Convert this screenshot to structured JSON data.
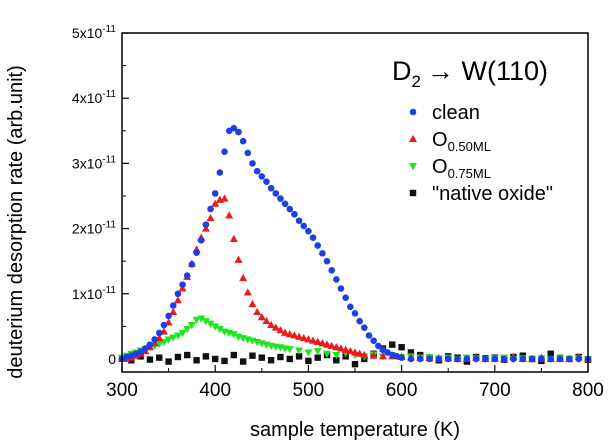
{
  "chart_data": {
    "type": "scatter",
    "title": "D",
    "title_sub": "2",
    "title_rest": "→ W(110)",
    "xlabel": "sample temperature (K)",
    "ylabel": "deuterium desorption rate (arb.unit)",
    "xlim": [
      300,
      800
    ],
    "ylim": [
      -2e-12,
      5e-11
    ],
    "x_ticks": [
      300,
      400,
      500,
      600,
      700,
      800
    ],
    "y_ticks": [
      {
        "value": 0,
        "label": "0",
        "exp": ""
      },
      {
        "value": 1e-11,
        "label": "1x10",
        "exp": "-11"
      },
      {
        "value": 2e-11,
        "label": "2x10",
        "exp": "-11"
      },
      {
        "value": 3e-11,
        "label": "3x10",
        "exp": "-11"
      },
      {
        "value": 4e-11,
        "label": "4x10",
        "exp": "-11"
      },
      {
        "value": 5e-11,
        "label": "5x10",
        "exp": "-11"
      }
    ],
    "grid": false,
    "legend_position": "top-right",
    "series": [
      {
        "name": "clean",
        "name_sub": "",
        "marker": "circle",
        "color": "#1f3fe6",
        "x": [
          300,
          305,
          310,
          315,
          320,
          325,
          330,
          335,
          340,
          345,
          350,
          355,
          360,
          365,
          370,
          375,
          380,
          385,
          390,
          395,
          400,
          405,
          410,
          415,
          420,
          425,
          430,
          435,
          440,
          445,
          450,
          455,
          460,
          465,
          470,
          475,
          480,
          485,
          490,
          495,
          500,
          505,
          510,
          515,
          520,
          525,
          530,
          535,
          540,
          545,
          550,
          555,
          560,
          565,
          570,
          575,
          580,
          585,
          590,
          595,
          600,
          610,
          620,
          630,
          640,
          650,
          660,
          670,
          680,
          690,
          700,
          710,
          720,
          730,
          740,
          750,
          760,
          770,
          780,
          790,
          800
        ],
        "y": [
          0,
          3e-13,
          5e-13,
          8e-13,
          1.1e-12,
          1.6e-12,
          2.2e-12,
          3e-12,
          4e-12,
          5.2e-12,
          6.6e-12,
          8.2e-12,
          1e-11,
          1.14e-11,
          1.28e-11,
          1.45e-11,
          1.63e-11,
          1.82e-11,
          2.06e-11,
          2.3e-11,
          2.54e-11,
          2.86e-11,
          3.18e-11,
          3.5e-11,
          3.54e-11,
          3.48e-11,
          3.34e-11,
          3.16e-11,
          3e-11,
          2.88e-11,
          2.8e-11,
          2.72e-11,
          2.62e-11,
          2.54e-11,
          2.46e-11,
          2.38e-11,
          2.3e-11,
          2.22e-11,
          2.12e-11,
          2.04e-11,
          1.96e-11,
          1.86e-11,
          1.74e-11,
          1.62e-11,
          1.5e-11,
          1.36e-11,
          1.22e-11,
          1.08e-11,
          9.4e-12,
          8e-12,
          7e-12,
          5.8e-12,
          4.8e-12,
          3.6e-12,
          2.8e-12,
          2e-12,
          1.4e-12,
          1e-12,
          6e-13,
          4e-13,
          2e-13,
          0,
          0,
          0,
          0,
          0,
          0,
          0,
          0,
          0,
          0,
          0,
          0,
          0,
          0,
          0,
          0,
          0,
          0,
          0,
          0
        ]
      },
      {
        "name": "O",
        "name_sub": "0.50ML",
        "marker": "triangle-up",
        "color": "#e81c1c",
        "x": [
          300,
          305,
          310,
          315,
          320,
          325,
          330,
          335,
          340,
          345,
          350,
          355,
          360,
          365,
          370,
          375,
          380,
          385,
          390,
          395,
          400,
          405,
          410,
          415,
          420,
          425,
          430,
          435,
          440,
          445,
          450,
          455,
          460,
          465,
          470,
          475,
          480,
          485,
          490,
          495,
          500,
          505,
          510,
          515,
          520,
          525,
          530,
          535,
          540,
          545,
          550,
          555,
          560,
          570,
          580,
          590,
          600,
          610,
          620,
          630,
          640,
          650,
          660,
          670,
          680,
          690,
          700,
          710,
          720,
          730,
          740,
          750,
          760,
          770,
          780,
          790,
          800
        ],
        "y": [
          0,
          0,
          2e-13,
          5e-13,
          8e-13,
          1.2e-12,
          1.8e-12,
          2.4e-12,
          3.2e-12,
          4.2e-12,
          5.6e-12,
          7.2e-12,
          9e-12,
          1.08e-11,
          1.26e-11,
          1.46e-11,
          1.68e-11,
          1.86e-11,
          2e-11,
          2.16e-11,
          2.38e-11,
          2.44e-11,
          2.46e-11,
          2.2e-11,
          1.84e-11,
          1.52e-11,
          1.24e-11,
          1.02e-11,
          8.4e-12,
          7.2e-12,
          6.4e-12,
          5.8e-12,
          5.2e-12,
          4.8e-12,
          4.4e-12,
          4e-12,
          3.8e-12,
          3.6e-12,
          3.4e-12,
          3.2e-12,
          3e-12,
          2.8e-12,
          2.6e-12,
          2.4e-12,
          2.2e-12,
          2e-12,
          1.8e-12,
          1.6e-12,
          1.4e-12,
          1.2e-12,
          1e-12,
          8e-13,
          6e-13,
          5e-13,
          4e-13,
          4e-13,
          3e-13,
          2e-13,
          2e-13,
          1e-13,
          1e-13,
          1e-13,
          0.0,
          0.0,
          2e-13,
          0,
          0,
          0,
          3e-13,
          0,
          0,
          2e-13,
          0,
          0,
          0,
          3e-13,
          0
        ]
      },
      {
        "name": "O",
        "name_sub": "0.75ML",
        "marker": "triangle-down",
        "color": "#1ee61e",
        "x": [
          300,
          305,
          310,
          315,
          320,
          325,
          330,
          335,
          340,
          345,
          350,
          355,
          360,
          365,
          370,
          375,
          380,
          385,
          390,
          395,
          400,
          405,
          410,
          415,
          420,
          425,
          430,
          435,
          440,
          445,
          450,
          455,
          460,
          465,
          470,
          475,
          480,
          490,
          500,
          510,
          520,
          530,
          540,
          550,
          560,
          570,
          580,
          590,
          600,
          610,
          620,
          630,
          640,
          650,
          660,
          670,
          680,
          690,
          700,
          710,
          720,
          730,
          740,
          750,
          760,
          770,
          780,
          790,
          800
        ],
        "y": [
          2e-13,
          5e-13,
          8e-13,
          1e-12,
          1.3e-12,
          1.5e-12,
          1.8e-12,
          2e-12,
          2.3e-12,
          2.6e-12,
          3e-12,
          3.3e-12,
          3.6e-12,
          4e-12,
          4.6e-12,
          5.2e-12,
          6e-12,
          6.2e-12,
          5.8e-12,
          5.4e-12,
          5e-12,
          4.6e-12,
          4.2e-12,
          4e-12,
          3.8e-12,
          3.4e-12,
          3.2e-12,
          3e-12,
          2.8e-12,
          2.6e-12,
          2.4e-12,
          2.2e-12,
          2e-12,
          1.9e-12,
          1.8e-12,
          1.6e-12,
          1.5e-12,
          1.3e-12,
          1e-12,
          1.2e-12,
          8e-13,
          6e-13,
          9e-13,
          6e-13,
          4e-13,
          7e-13,
          4e-13,
          6e-13,
          3e-13,
          4e-13,
          2e-13,
          3e-13,
          1e-13,
          2e-13,
          0.0,
          2e-13,
          1e-13,
          0.0,
          1e-13,
          2e-13,
          0.0,
          1e-13,
          0.0,
          1e-13,
          0.0,
          2e-13,
          0.0,
          1e-13,
          0.0
        ]
      },
      {
        "name": "\"native oxide\"",
        "name_sub": "",
        "marker": "square",
        "color": "#111111",
        "x": [
          300,
          310,
          320,
          330,
          340,
          350,
          360,
          370,
          380,
          390,
          400,
          410,
          420,
          430,
          440,
          450,
          460,
          470,
          480,
          490,
          500,
          510,
          520,
          530,
          540,
          550,
          560,
          570,
          580,
          590,
          600,
          610,
          620,
          630,
          640,
          650,
          660,
          670,
          680,
          690,
          700,
          710,
          720,
          730,
          740,
          750,
          760,
          770,
          780,
          790,
          800
        ],
        "y": [
          1e-13,
          -2e-13,
          4e-13,
          -1e-13,
          2e-13,
          -4e-13,
          3e-13,
          6e-13,
          -2e-13,
          4e-13,
          0.0,
          -3e-13,
          6e-13,
          -4e-13,
          5e-13,
          2e-13,
          -2e-13,
          3e-13,
          0.0,
          4e-13,
          -3e-13,
          2e-13,
          6e-13,
          -2e-13,
          4e-13,
          -8e-13,
          0.0,
          8e-13,
          1.6e-12,
          2.2e-12,
          1.8e-12,
          1e-12,
          6e-13,
          2e-13,
          -2e-13,
          4e-13,
          2e-13,
          -4e-13,
          3e-13,
          1e-13,
          2e-13,
          -1e-13,
          3e-13,
          5e-13,
          0.0,
          -3e-13,
          8e-13,
          2e-13,
          0.0,
          3e-13,
          -1e-13
        ]
      }
    ]
  }
}
